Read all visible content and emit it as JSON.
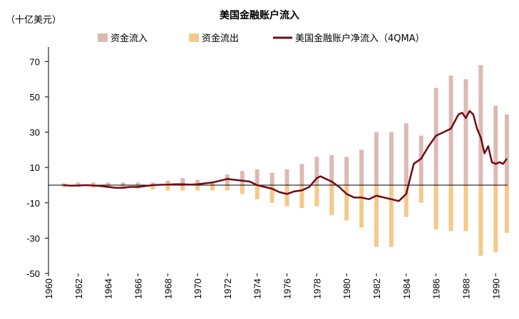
{
  "chart_data": {
    "type": "bar",
    "title": "美国金融账户流入",
    "unit_label": "（十亿美元）",
    "ylim": [
      -50,
      75
    ],
    "yticks": [
      70,
      50,
      30,
      10,
      -10,
      -30,
      -50
    ],
    "xticks": [
      "1960",
      "1962",
      "1964",
      "1966",
      "1968",
      "1970",
      "1972",
      "1974",
      "1976",
      "1978",
      "1980",
      "1982",
      "1984",
      "1986",
      "1988",
      "1990"
    ],
    "x_start": 1960,
    "x_end": 1990.8,
    "negative_tick_color": "#ff0000",
    "legend": [
      "资金流入",
      "资金流出",
      "美国金融账户净流入（4QMA）"
    ],
    "legend_position": "top",
    "colors": {
      "inflow": "#dcbab4",
      "outflow": "#f5c98a",
      "net": "#6e0b14"
    },
    "series": [
      {
        "name": "资金流入",
        "x": [
          1961,
          1962,
          1963,
          1964,
          1965,
          1966,
          1967,
          1968,
          1969,
          1970,
          1971,
          1972,
          1973,
          1974,
          1975,
          1976,
          1977,
          1978,
          1979,
          1980,
          1981,
          1982,
          1983,
          1984,
          1985,
          1986,
          1987,
          1988,
          1989,
          1990,
          1990.75
        ],
        "values": [
          1,
          1.5,
          1.5,
          1.5,
          1.5,
          1.5,
          1.5,
          2.5,
          4,
          3,
          2,
          6,
          8,
          9,
          7,
          9,
          12,
          16,
          17,
          16,
          20,
          30,
          30,
          35,
          28,
          55,
          62,
          60,
          68,
          45,
          40
        ]
      },
      {
        "name": "资金流出",
        "x": [
          1961,
          1962,
          1963,
          1964,
          1965,
          1966,
          1967,
          1968,
          1969,
          1970,
          1971,
          1972,
          1973,
          1974,
          1975,
          1976,
          1977,
          1978,
          1979,
          1980,
          1981,
          1982,
          1983,
          1984,
          1985,
          1986,
          1987,
          1988,
          1989,
          1990,
          1990.75
        ],
        "values": [
          -1,
          -1,
          -1.5,
          -1.5,
          -2,
          -2,
          -2.5,
          -3,
          -3,
          -3,
          -3,
          -3,
          -5,
          -8,
          -10,
          -12,
          -13,
          -12,
          -17,
          -20,
          -24,
          -35,
          -35,
          -18,
          -10,
          -25,
          -26,
          -26,
          -40,
          -38,
          -27
        ]
      },
      {
        "name": "美国金融账户净流入（4QMA）",
        "x": [
          1961,
          1961.5,
          1962,
          1962.5,
          1963,
          1963.5,
          1964,
          1964.5,
          1965,
          1965.5,
          1966,
          1966.5,
          1967,
          1967.5,
          1968,
          1968.5,
          1969,
          1969.5,
          1970,
          1970.5,
          1971,
          1971.5,
          1972,
          1972.5,
          1973,
          1973.5,
          1974,
          1974.5,
          1975,
          1975.5,
          1976,
          1976.5,
          1977,
          1977.5,
          1978,
          1978.25,
          1978.5,
          1978.75,
          1979,
          1979.5,
          1980,
          1980.5,
          1981,
          1981.5,
          1982,
          1982.5,
          1983,
          1983.5,
          1984,
          1984.5,
          1985,
          1985.5,
          1986,
          1986.5,
          1987,
          1987.25,
          1987.5,
          1987.75,
          1988,
          1988.25,
          1988.5,
          1988.75,
          1989,
          1989.25,
          1989.5,
          1989.75,
          1990,
          1990.25,
          1990.5,
          1990.75
        ],
        "values": [
          0,
          -0.3,
          -0.2,
          0,
          -0.2,
          -0.5,
          -1,
          -1.5,
          -1.5,
          -1,
          -1,
          -0.5,
          0,
          0.2,
          0.3,
          0.5,
          0.5,
          0.3,
          0.5,
          1,
          1.5,
          2.5,
          3.5,
          3,
          2.5,
          2,
          0,
          -1,
          -2,
          -4,
          -5,
          -3.5,
          -3,
          -1,
          4,
          5,
          4,
          3,
          2,
          -1,
          -5,
          -7,
          -7,
          -8,
          -6,
          -7,
          -8,
          -9,
          -5,
          12,
          15,
          22,
          28,
          30,
          32,
          36,
          40,
          41,
          38,
          42,
          40,
          32,
          27,
          18,
          22,
          13,
          12,
          13,
          12,
          15
        ]
      }
    ]
  }
}
